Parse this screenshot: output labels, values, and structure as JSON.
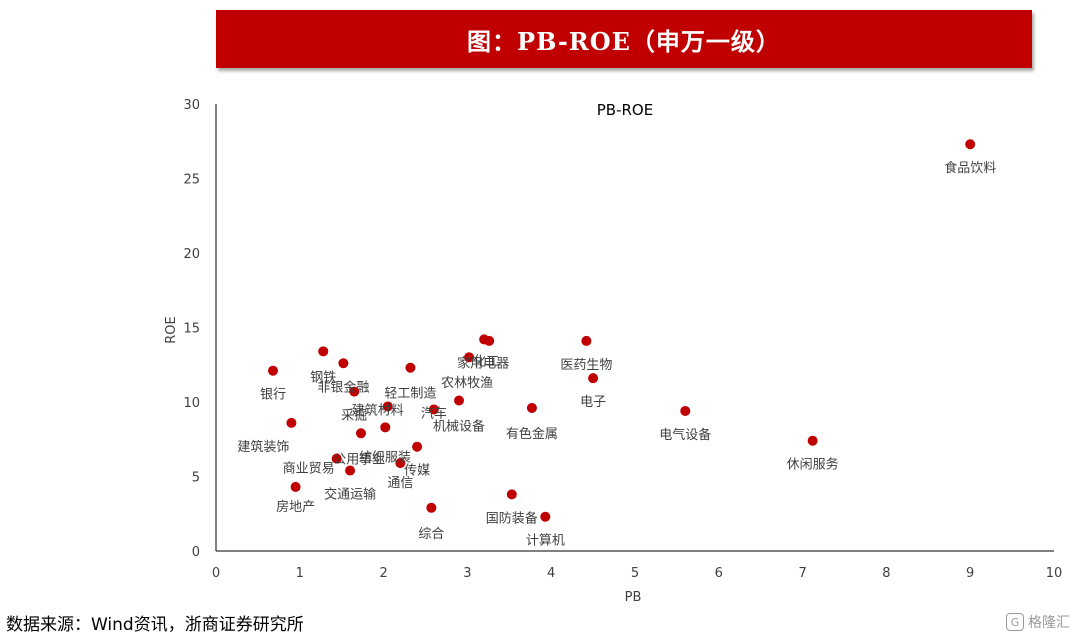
{
  "header": {
    "title": "图：PB-ROE（申万一级）"
  },
  "source": "数据来源：Wind资讯，浙商证券研究所",
  "watermark": {
    "glyph": "G",
    "text": "格隆汇"
  },
  "colors": {
    "accent": "#c00000",
    "point": "#c00000",
    "axis": "#000000",
    "text": "#404040"
  },
  "chart_data": {
    "type": "scatter",
    "title": "PB-ROE",
    "xlabel": "PB",
    "ylabel": "ROE",
    "xlim": [
      0,
      10
    ],
    "ylim": [
      0,
      30
    ],
    "x_ticks": [
      0,
      1,
      2,
      3,
      4,
      5,
      6,
      7,
      8,
      9,
      10
    ],
    "y_ticks": [
      0,
      5,
      10,
      15,
      20,
      25,
      30
    ],
    "grid": false,
    "points": [
      {
        "label": "银行",
        "x": 0.68,
        "y": 12.1
      },
      {
        "label": "钢铁",
        "x": 1.28,
        "y": 13.4
      },
      {
        "label": "非银金融",
        "x": 1.52,
        "y": 12.6
      },
      {
        "label": "采掘",
        "x": 1.65,
        "y": 10.7
      },
      {
        "label": "轻工制造",
        "x": 2.32,
        "y": 12.3
      },
      {
        "label": "家用电器",
        "x": 3.02,
        "y": 13.0
      },
      {
        "label": "化工",
        "x": 3.2,
        "y": 14.2
      },
      {
        "label": "农林牧渔",
        "x": 3.26,
        "y": 14.1
      },
      {
        "label": "医药生物",
        "x": 4.42,
        "y": 14.1
      },
      {
        "label": "电子",
        "x": 4.5,
        "y": 11.6
      },
      {
        "label": "建筑装饰",
        "x": 0.9,
        "y": 8.6
      },
      {
        "label": "建筑材料",
        "x": 2.05,
        "y": 9.7
      },
      {
        "label": "机械设备",
        "x": 2.9,
        "y": 10.1
      },
      {
        "label": "汽车",
        "x": 2.6,
        "y": 9.5
      },
      {
        "label": "有色金属",
        "x": 3.77,
        "y": 9.6
      },
      {
        "label": "纺织服装",
        "x": 1.73,
        "y": 7.9
      },
      {
        "label": "公用事业",
        "x": 2.02,
        "y": 8.3
      },
      {
        "label": "传媒",
        "x": 2.4,
        "y": 7.0
      },
      {
        "label": "商业贸易",
        "x": 1.44,
        "y": 6.2
      },
      {
        "label": "交通运输",
        "x": 1.6,
        "y": 5.4
      },
      {
        "label": "通信",
        "x": 2.2,
        "y": 5.9
      },
      {
        "label": "房地产",
        "x": 0.95,
        "y": 4.3
      },
      {
        "label": "综合",
        "x": 2.57,
        "y": 2.9
      },
      {
        "label": "国防装备",
        "x": 3.53,
        "y": 3.8
      },
      {
        "label": "计算机",
        "x": 3.93,
        "y": 2.3
      },
      {
        "label": "电气设备",
        "x": 5.6,
        "y": 9.4
      },
      {
        "label": "休闲服务",
        "x": 7.12,
        "y": 7.4
      },
      {
        "label": "食品饮料",
        "x": 9.0,
        "y": 27.3
      }
    ]
  }
}
